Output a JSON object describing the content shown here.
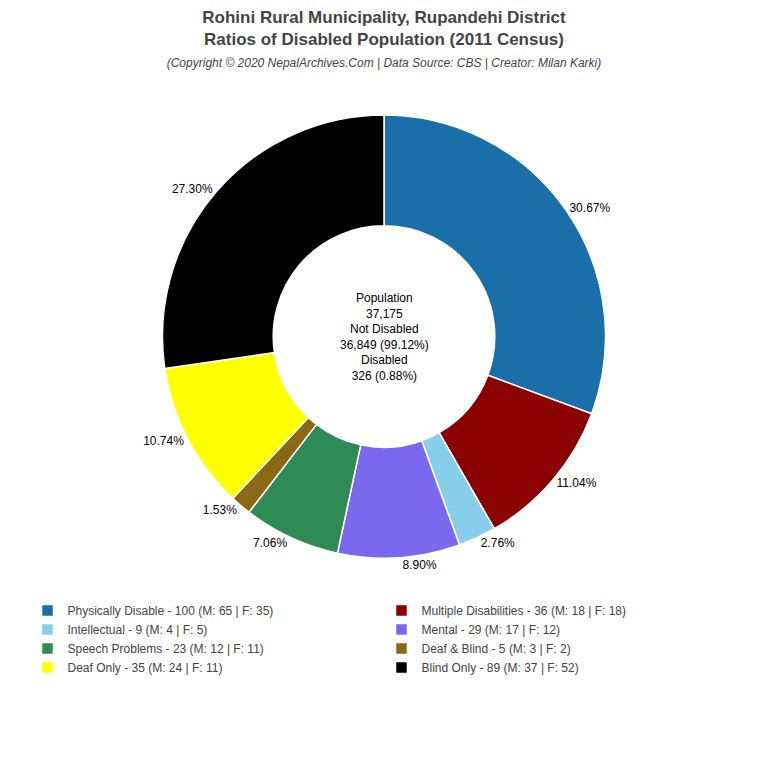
{
  "chart_data": {
    "type": "pie",
    "title": "Rohini Rural Municipality, Rupandehi District\nRatios of Disabled Population (2011 Census)",
    "subtitle": "(Copyright © 2020 NepalArchives.Com | Data Source: CBS | Creator: Milan Karki)",
    "categories": [
      "Physically Disable - 100 (M: 65 | F: 35)",
      "Multiple Disabilities - 36 (M: 18 | F: 18)",
      "Intellectual - 9 (M: 4 | F: 5)",
      "Mental - 29 (M: 17 | F: 12)",
      "Speech Problems - 23 (M: 12 | F: 11)",
      "Deaf & Blind - 5 (M: 3 | F: 2)",
      "Deaf Only - 35 (M: 24 | F: 11)",
      "Blind Only - 89 (M: 37 | F: 52)"
    ],
    "values": [
      30.67,
      11.04,
      2.76,
      8.9,
      7.06,
      1.53,
      10.74,
      27.3
    ],
    "value_labels": [
      "30.67%",
      "11.04%",
      "2.76%",
      "8.90%",
      "7.06%",
      "1.53%",
      "10.74%",
      "27.30%"
    ],
    "colors": [
      "#1a6fa8",
      "#8b0000",
      "#87ceeb",
      "#7b68ee",
      "#2e8b57",
      "#8B6914",
      "#ffff00",
      "#000000"
    ],
    "annotations": [
      "Population",
      "37,175",
      "Not Disabled",
      "36,849 (99.12%)",
      "Disabled",
      "326 (0.88%)"
    ],
    "data_labels": true,
    "legend": "bottom"
  }
}
